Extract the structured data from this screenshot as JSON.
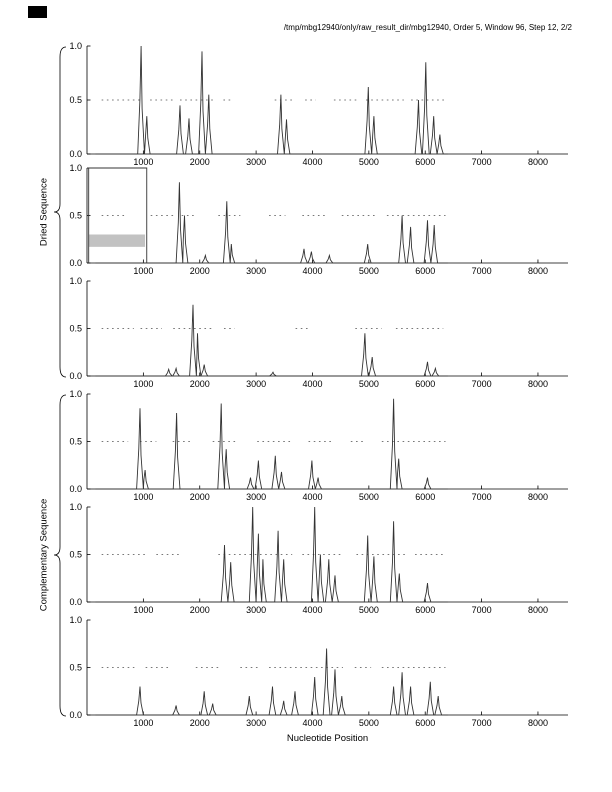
{
  "chart_data": {
    "type": "line",
    "title": "/tmp/mbg12940/only/raw_result_dir/mbg12940, Order 5, Window 96, Step 12, 2/2",
    "xlabel": "Nucleotide Position",
    "group_labels": [
      "Dried Sequence",
      "Complementary Sequence"
    ],
    "xlim": [
      0,
      8533
    ],
    "ylim": [
      0,
      1
    ],
    "xticks": [
      1000,
      2000,
      3000,
      4000,
      5000,
      6000,
      7000,
      8000
    ],
    "yticks": [
      0,
      0.5,
      1
    ],
    "ytick_labels": [
      "0.0",
      "0.5",
      "1.0"
    ],
    "threshold_y": 0.5,
    "grid": false,
    "legend": "none",
    "subplots": [
      {
        "name": "dried-1",
        "peaks": [
          [
            960,
            1.0
          ],
          [
            1060,
            0.35
          ],
          [
            1650,
            0.45
          ],
          [
            1810,
            0.33
          ],
          [
            2040,
            0.95
          ],
          [
            2160,
            0.55
          ],
          [
            3440,
            0.55
          ],
          [
            3540,
            0.32
          ],
          [
            4990,
            0.62
          ],
          [
            5090,
            0.35
          ],
          [
            5880,
            0.5
          ],
          [
            6010,
            0.85
          ],
          [
            6150,
            0.35
          ],
          [
            6260,
            0.18
          ]
        ],
        "dash_segments": [
          [
            260,
            950
          ],
          [
            1120,
            1540
          ],
          [
            1650,
            2280
          ],
          [
            2420,
            2580
          ],
          [
            3330,
            3680
          ],
          [
            3870,
            4060
          ],
          [
            4380,
            4820
          ],
          [
            4950,
            5620
          ],
          [
            5750,
            6360
          ]
        ]
      },
      {
        "name": "dried-2",
        "plateau": {
          "x0": 30,
          "x1": 1060,
          "y": 1.0
        },
        "gray_box": {
          "x0": 30,
          "x1": 1030,
          "y0": 0.17,
          "y1": 0.3
        },
        "peaks": [
          [
            1640,
            0.85
          ],
          [
            1730,
            0.5
          ],
          [
            2100,
            0.08
          ],
          [
            2480,
            0.65
          ],
          [
            2560,
            0.2
          ],
          [
            3850,
            0.15
          ],
          [
            3980,
            0.12
          ],
          [
            4300,
            0.08
          ],
          [
            4980,
            0.2
          ],
          [
            5590,
            0.5
          ],
          [
            5740,
            0.38
          ],
          [
            6040,
            0.45
          ],
          [
            6160,
            0.4
          ]
        ],
        "dash_segments": [
          [
            260,
            720
          ],
          [
            1130,
            1560
          ],
          [
            1680,
            1920
          ],
          [
            2330,
            2720
          ],
          [
            3230,
            3520
          ],
          [
            3820,
            4240
          ],
          [
            4520,
            5120
          ],
          [
            5320,
            6360
          ]
        ]
      },
      {
        "name": "dried-3",
        "peaks": [
          [
            1450,
            0.07
          ],
          [
            1580,
            0.08
          ],
          [
            1880,
            0.75
          ],
          [
            1960,
            0.45
          ],
          [
            2080,
            0.12
          ],
          [
            3300,
            0.04
          ],
          [
            4930,
            0.45
          ],
          [
            5060,
            0.2
          ],
          [
            6040,
            0.15
          ],
          [
            6180,
            0.08
          ]
        ],
        "dash_segments": [
          [
            260,
            830
          ],
          [
            950,
            1330
          ],
          [
            1530,
            2240
          ],
          [
            2430,
            2620
          ],
          [
            3700,
            3920
          ],
          [
            4760,
            5230
          ],
          [
            5480,
            6320
          ]
        ]
      },
      {
        "name": "complementary-1",
        "peaks": [
          [
            940,
            0.85
          ],
          [
            1030,
            0.2
          ],
          [
            1590,
            0.8
          ],
          [
            2380,
            0.9
          ],
          [
            2470,
            0.42
          ],
          [
            2900,
            0.12
          ],
          [
            3040,
            0.3
          ],
          [
            3340,
            0.35
          ],
          [
            3450,
            0.18
          ],
          [
            3990,
            0.3
          ],
          [
            4100,
            0.12
          ],
          [
            5440,
            0.95
          ],
          [
            5530,
            0.32
          ],
          [
            6040,
            0.12
          ]
        ],
        "dash_segments": [
          [
            260,
            730
          ],
          [
            940,
            1230
          ],
          [
            1520,
            1830
          ],
          [
            2230,
            2640
          ],
          [
            3020,
            3620
          ],
          [
            3930,
            4330
          ],
          [
            4680,
            4920
          ],
          [
            5230,
            6360
          ]
        ]
      },
      {
        "name": "complementary-2",
        "peaks": [
          [
            2440,
            0.6
          ],
          [
            2550,
            0.42
          ],
          [
            2940,
            1.0
          ],
          [
            3040,
            0.72
          ],
          [
            3120,
            0.45
          ],
          [
            3390,
            0.75
          ],
          [
            3490,
            0.45
          ],
          [
            4040,
            1.0
          ],
          [
            4140,
            0.5
          ],
          [
            4290,
            0.45
          ],
          [
            4400,
            0.28
          ],
          [
            4980,
            0.7
          ],
          [
            5090,
            0.48
          ],
          [
            5440,
            0.85
          ],
          [
            5540,
            0.3
          ],
          [
            6040,
            0.2
          ]
        ],
        "dash_segments": [
          [
            260,
            1040
          ],
          [
            1230,
            1640
          ],
          [
            2330,
            3640
          ],
          [
            3820,
            4540
          ],
          [
            4780,
            5640
          ],
          [
            5820,
            6360
          ]
        ]
      },
      {
        "name": "complementary-3",
        "peaks": [
          [
            940,
            0.3
          ],
          [
            1580,
            0.1
          ],
          [
            2080,
            0.25
          ],
          [
            2230,
            0.12
          ],
          [
            2880,
            0.2
          ],
          [
            3290,
            0.3
          ],
          [
            3490,
            0.15
          ],
          [
            3690,
            0.25
          ],
          [
            4040,
            0.4
          ],
          [
            4250,
            0.7
          ],
          [
            4400,
            0.48
          ],
          [
            4520,
            0.2
          ],
          [
            5440,
            0.3
          ],
          [
            5590,
            0.45
          ],
          [
            5740,
            0.3
          ],
          [
            6090,
            0.35
          ],
          [
            6230,
            0.2
          ]
        ],
        "dash_segments": [
          [
            260,
            840
          ],
          [
            1040,
            1440
          ],
          [
            1930,
            2340
          ],
          [
            2720,
            3040
          ],
          [
            3230,
            4540
          ],
          [
            4750,
            5040
          ],
          [
            5230,
            6360
          ]
        ]
      }
    ]
  }
}
